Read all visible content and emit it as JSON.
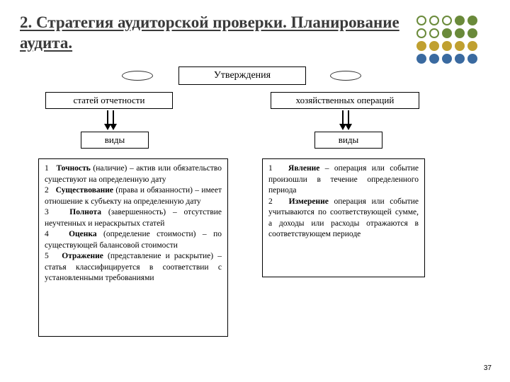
{
  "title": "2. Стратегия аудиторской проверки. Планирование аудита.",
  "dots": {
    "colors": [
      "#ffffff",
      "#ffffff",
      "#ffffff",
      "#6a8a3a",
      "#6a8a3a",
      "#ffffff",
      "#ffffff",
      "#6a8a3a",
      "#6a8a3a",
      "#6a8a3a",
      "#c0a030",
      "#c0a030",
      "#c0a030",
      "#c0a030",
      "#c0a030",
      "#3a6aa0",
      "#3a6aa0",
      "#3a6aa0",
      "#3a6aa0",
      "#3a6aa0"
    ],
    "borders": [
      "#6a8a3a",
      "#6a8a3a",
      "#6a8a3a",
      "none",
      "none",
      "#6a8a3a",
      "#6a8a3a",
      "none",
      "none",
      "none",
      "none",
      "none",
      "none",
      "none",
      "none",
      "none",
      "none",
      "none",
      "none",
      "none"
    ]
  },
  "boxes": {
    "top": "Утверждения",
    "left1": "статей отчетности",
    "right1": "хозяйственных операций",
    "left2": "виды",
    "right2": "виды"
  },
  "textLeft": "1&nbsp;&nbsp;&nbsp;<b>Точность</b> (наличие) – актив или обязательство существуют на определенную дату<br>2&nbsp;&nbsp;&nbsp;<b>Существование</b> (права и обязанности) – имеет отношение к субъекту на определенную дату<br>3&nbsp;&nbsp;&nbsp;<b>Полнота</b> (завершенность) – отсутствие неучтенных и нераскрытых статей<br>4&nbsp;&nbsp;&nbsp;<b>Оценка</b> (определение стоимости) – по существующей балансовой стоимости<br>5&nbsp;&nbsp;&nbsp;<b>Отражение</b> (представление и раскрытие) – статья классифицируется в соответствии с установленными требованиями",
  "textRight": "1&nbsp;&nbsp;&nbsp;<b>Явление</b> – операция или событие произошли в течение определенного периода<br>2&nbsp;&nbsp;&nbsp;<b>Измерение</b> операция или событие учитываются по соответствующей сумме, а доходы или расходы отражаются в соответствующем периоде",
  "pageNumber": "37"
}
